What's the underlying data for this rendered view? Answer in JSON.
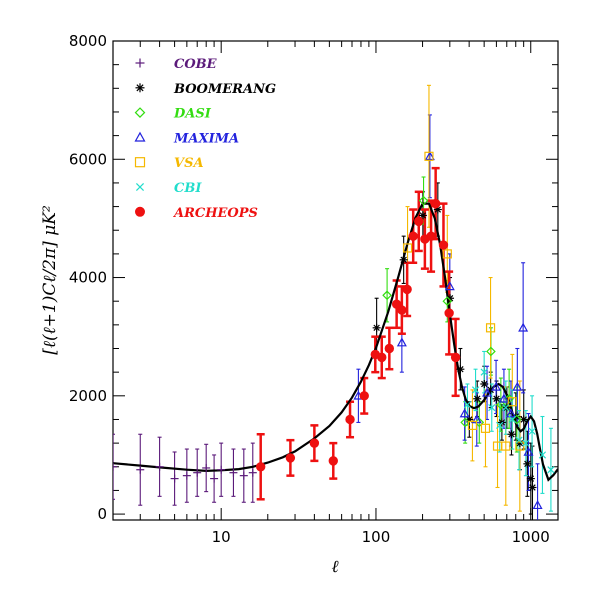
{
  "chart_data": {
    "type": "scatter",
    "xscale": "log",
    "xlim": [
      2,
      1500
    ],
    "ylim": [
      -100,
      8000
    ],
    "xlabel": "ℓ",
    "ylabel": "[ℓ(ℓ+1)Cℓ/2π] μK²",
    "x_ticks": [
      {
        "value": 10,
        "label": "10"
      },
      {
        "value": 100,
        "label": "100"
      },
      {
        "value": 1000,
        "label": "1000"
      }
    ],
    "y_ticks": [
      {
        "value": 0,
        "label": "0"
      },
      {
        "value": 2000,
        "label": "2000"
      },
      {
        "value": 4000,
        "label": "4000"
      },
      {
        "value": 6000,
        "label": "6000"
      },
      {
        "value": 8000,
        "label": "8000"
      }
    ],
    "legend_position": "top-left",
    "series": [
      {
        "name": "COBE",
        "marker": "plus",
        "color": "#5b1a7a",
        "points": [
          [
            2,
            800,
            550
          ],
          [
            3,
            750,
            600
          ],
          [
            4,
            800,
            500
          ],
          [
            5,
            600,
            450
          ],
          [
            6,
            650,
            450
          ],
          [
            7,
            700,
            400
          ],
          [
            8,
            780,
            400
          ],
          [
            9,
            600,
            400
          ],
          [
            10,
            750,
            450
          ],
          [
            12,
            700,
            400
          ],
          [
            14,
            650,
            450
          ],
          [
            16,
            700,
            500
          ]
        ]
      },
      {
        "name": "BOOMERANG",
        "marker": "asterisk",
        "color": "#000000",
        "points": [
          [
            101,
            3150,
            500
          ],
          [
            151,
            4300,
            400
          ],
          [
            201,
            5050,
            400
          ],
          [
            251,
            5150,
            450
          ],
          [
            301,
            3650,
            350
          ],
          [
            351,
            2450,
            350
          ],
          [
            401,
            1600,
            300
          ],
          [
            451,
            1950,
            300
          ],
          [
            501,
            2200,
            300
          ],
          [
            551,
            2100,
            300
          ],
          [
            601,
            1950,
            300
          ],
          [
            651,
            1550,
            300
          ],
          [
            701,
            1800,
            350
          ],
          [
            751,
            1350,
            350
          ],
          [
            801,
            1650,
            400
          ],
          [
            851,
            1200,
            450
          ],
          [
            901,
            1600,
            500
          ],
          [
            951,
            850,
            550
          ],
          [
            1001,
            600,
            600
          ],
          [
            1026,
            450,
            700
          ]
        ]
      },
      {
        "name": "DASI",
        "marker": "diamond",
        "color": "#33dd11",
        "points": [
          [
            118,
            3700,
            450
          ],
          [
            203,
            5300,
            400
          ],
          [
            289,
            3600,
            350
          ],
          [
            377,
            1550,
            350
          ],
          [
            465,
            1550,
            350
          ],
          [
            553,
            2750,
            400
          ],
          [
            641,
            1850,
            450
          ],
          [
            725,
            1950,
            500
          ],
          [
            813,
            1600,
            550
          ]
        ]
      },
      {
        "name": "MAXIMA",
        "marker": "triangle",
        "color": "#2222dd",
        "points": [
          [
            77,
            2000,
            450
          ],
          [
            147,
            2900,
            500
          ],
          [
            223,
            6050,
            700
          ],
          [
            300,
            3850,
            550
          ],
          [
            374,
            1700,
            450
          ],
          [
            448,
            1600,
            450
          ],
          [
            522,
            2050,
            450
          ],
          [
            597,
            2150,
            450
          ],
          [
            671,
            1950,
            500
          ],
          [
            745,
            1700,
            550
          ],
          [
            819,
            2150,
            650
          ],
          [
            893,
            3150,
            1100
          ],
          [
            967,
            1050,
            650
          ],
          [
            1107,
            150,
            700
          ]
        ]
      },
      {
        "name": "VSA",
        "marker": "square",
        "color": "#f5b800",
        "points": [
          [
            160,
            4500,
            700
          ],
          [
            220,
            6050,
            1200
          ],
          [
            289,
            4400,
            650
          ],
          [
            420,
            1500,
            600
          ],
          [
            510,
            1450,
            650
          ],
          [
            550,
            3150,
            850
          ],
          [
            610,
            1150,
            700
          ],
          [
            690,
            1150,
            1000
          ],
          [
            760,
            1900,
            800
          ],
          [
            850,
            1150,
            1100
          ]
        ]
      },
      {
        "name": "CBI",
        "marker": "cross",
        "color": "#22ddcc",
        "points": [
          [
            390,
            1850,
            350
          ],
          [
            440,
            2100,
            350
          ],
          [
            500,
            2400,
            350
          ],
          [
            560,
            1800,
            400
          ],
          [
            630,
            1500,
            450
          ],
          [
            690,
            1800,
            450
          ],
          [
            760,
            1600,
            500
          ],
          [
            840,
            1250,
            500
          ],
          [
            930,
            1200,
            550
          ],
          [
            1020,
            1400,
            600
          ],
          [
            1190,
            1000,
            650
          ],
          [
            1350,
            750,
            700
          ]
        ]
      },
      {
        "name": "ARCHEOPS",
        "marker": "dot",
        "color": "#ee1111",
        "points": [
          [
            18,
            800,
            550
          ],
          [
            28,
            950,
            300
          ],
          [
            40,
            1200,
            300
          ],
          [
            53,
            900,
            300
          ],
          [
            68,
            1600,
            300
          ],
          [
            84,
            2000,
            300
          ],
          [
            99,
            2700,
            300
          ],
          [
            109,
            2650,
            350
          ],
          [
            122,
            2800,
            350
          ],
          [
            136,
            3550,
            400
          ],
          [
            147,
            3450,
            400
          ],
          [
            159,
            3800,
            450
          ],
          [
            174,
            4700,
            450
          ],
          [
            189,
            4950,
            500
          ],
          [
            207,
            4650,
            500
          ],
          [
            227,
            4700,
            600
          ],
          [
            243,
            5250,
            600
          ],
          [
            273,
            4550,
            700
          ],
          [
            297,
            3400,
            700
          ],
          [
            327,
            2650,
            650
          ]
        ]
      }
    ],
    "model_curve": {
      "name": "",
      "color": "#000000",
      "x": [
        2,
        3,
        4,
        6,
        8,
        10,
        13,
        16,
        20,
        25,
        30,
        40,
        50,
        60,
        70,
        80,
        90,
        100,
        120,
        140,
        160,
        180,
        200,
        220,
        240,
        260,
        280,
        300,
        320,
        340,
        360,
        380,
        400,
        430,
        460,
        500,
        540,
        580,
        620,
        660,
        700,
        740,
        780,
        820,
        860,
        900,
        950,
        1000,
        1050,
        1100,
        1150,
        1200,
        1300,
        1400,
        1500
      ],
      "y": [
        860,
        820,
        790,
        750,
        730,
        740,
        760,
        800,
        870,
        960,
        1060,
        1280,
        1490,
        1720,
        1970,
        2240,
        2520,
        2810,
        3420,
        4030,
        4580,
        5010,
        5250,
        5250,
        5000,
        4550,
        3980,
        3390,
        2870,
        2450,
        2140,
        1940,
        1830,
        1790,
        1820,
        1930,
        2060,
        2160,
        2200,
        2150,
        2020,
        1830,
        1620,
        1470,
        1400,
        1440,
        1570,
        1650,
        1570,
        1360,
        1090,
        840,
        580,
        660,
        760
      ]
    }
  }
}
